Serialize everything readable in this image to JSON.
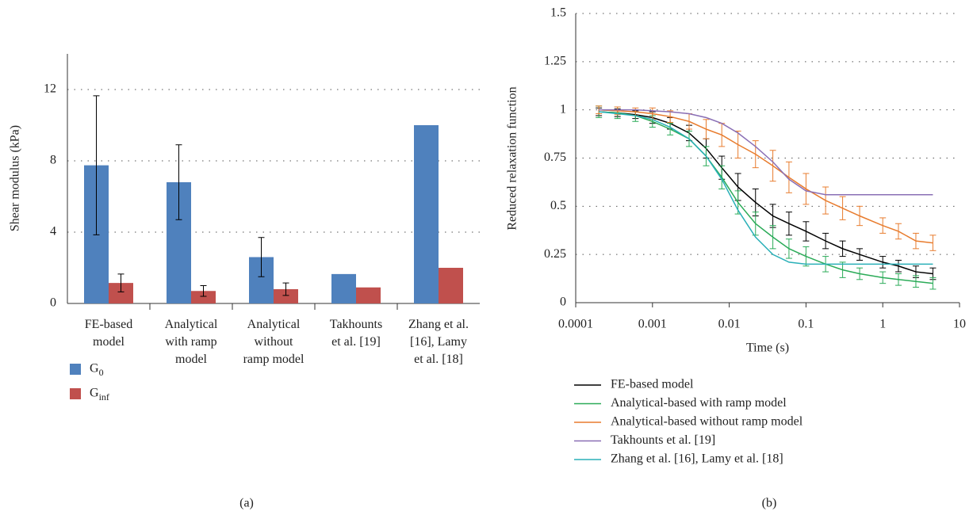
{
  "chart_data": [
    {
      "type": "bar",
      "caption": "(a)",
      "ylabel": "Shear modulus (kPa)",
      "categories": [
        "FE-based\nmodel",
        "Analytical\nwith ramp\nmodel",
        "Analytical\nwithout\nramp model",
        "Takhounts\net al. [19]",
        "Zhang et al.\n[16], Lamy\net al. [18]"
      ],
      "series": [
        {
          "name": "G0",
          "color": "#4f81bd",
          "values": [
            7.75,
            6.8,
            2.6,
            1.65,
            10
          ],
          "errors": [
            3.9,
            2.1,
            1.1,
            null,
            null
          ]
        },
        {
          "name": "Ginf",
          "color": "#c0504d",
          "values": [
            1.15,
            0.7,
            0.8,
            0.9,
            2.0
          ],
          "errors": [
            0.5,
            0.3,
            0.35,
            null,
            null
          ]
        }
      ],
      "ylim": [
        0,
        14
      ],
      "yticks": [
        0,
        4,
        8,
        12
      ],
      "grid": true,
      "legend": "bottom"
    },
    {
      "type": "line",
      "caption": "(b)",
      "xlabel": "Time (s)",
      "ylabel": "Reduced relaxation function",
      "xscale": "log",
      "xlim": [
        0.0001,
        10
      ],
      "xticks": [
        0.0001,
        0.001,
        0.01,
        0.1,
        1,
        10
      ],
      "ylim": [
        0,
        1.5
      ],
      "yticks": [
        0,
        0.25,
        0.5,
        0.75,
        1,
        1.25,
        1.5
      ],
      "grid": true,
      "legend": "bottom",
      "x": [
        0.0002,
        0.00035,
        0.0006,
        0.001,
        0.0017,
        0.003,
        0.005,
        0.008,
        0.013,
        0.022,
        0.037,
        0.06,
        0.1,
        0.18,
        0.3,
        0.5,
        1,
        1.6,
        2.7,
        4.5
      ],
      "series": [
        {
          "name": "FE-based model",
          "color": "#000000",
          "values": [
            0.99,
            0.985,
            0.975,
            0.96,
            0.93,
            0.88,
            0.8,
            0.7,
            0.6,
            0.52,
            0.45,
            0.41,
            0.37,
            0.32,
            0.28,
            0.25,
            0.21,
            0.19,
            0.16,
            0.15
          ],
          "errors": [
            0.02,
            0.02,
            0.02,
            0.03,
            0.03,
            0.04,
            0.05,
            0.06,
            0.07,
            0.07,
            0.06,
            0.06,
            0.05,
            0.04,
            0.04,
            0.03,
            0.03,
            0.03,
            0.03,
            0.03
          ]
        },
        {
          "name": "Analytical-based with ramp model",
          "color": "#2bab58",
          "values": [
            0.99,
            0.985,
            0.97,
            0.94,
            0.9,
            0.85,
            0.76,
            0.65,
            0.52,
            0.41,
            0.34,
            0.28,
            0.24,
            0.2,
            0.17,
            0.15,
            0.13,
            0.12,
            0.11,
            0.1
          ],
          "errors": [
            0.03,
            0.03,
            0.03,
            0.03,
            0.03,
            0.04,
            0.05,
            0.06,
            0.06,
            0.06,
            0.06,
            0.05,
            0.05,
            0.04,
            0.04,
            0.03,
            0.03,
            0.03,
            0.03,
            0.03
          ]
        },
        {
          "name": "Analytical-based without ramp model",
          "color": "#e87c2e",
          "values": [
            1.0,
            0.995,
            0.99,
            0.98,
            0.965,
            0.94,
            0.9,
            0.87,
            0.82,
            0.77,
            0.71,
            0.65,
            0.59,
            0.53,
            0.49,
            0.45,
            0.4,
            0.37,
            0.32,
            0.31
          ],
          "errors": [
            0.02,
            0.02,
            0.02,
            0.03,
            0.03,
            0.04,
            0.05,
            0.06,
            0.07,
            0.07,
            0.08,
            0.08,
            0.08,
            0.07,
            0.06,
            0.05,
            0.04,
            0.04,
            0.04,
            0.04
          ]
        },
        {
          "name": "Takhounts et al. [19]",
          "color": "#8a6fb5",
          "values": [
            1.0,
            1.0,
            1.0,
            0.995,
            0.99,
            0.98,
            0.96,
            0.93,
            0.88,
            0.81,
            0.73,
            0.64,
            0.58,
            0.56,
            0.56,
            0.56,
            0.56,
            0.56,
            0.56,
            0.56
          ]
        },
        {
          "name": "Zhang et al. [16], Lamy et al. [18]",
          "color": "#2ab0b8",
          "values": [
            0.99,
            0.98,
            0.97,
            0.95,
            0.91,
            0.85,
            0.76,
            0.64,
            0.48,
            0.34,
            0.25,
            0.21,
            0.2,
            0.2,
            0.2,
            0.2,
            0.2,
            0.2,
            0.2,
            0.2
          ]
        }
      ]
    }
  ]
}
